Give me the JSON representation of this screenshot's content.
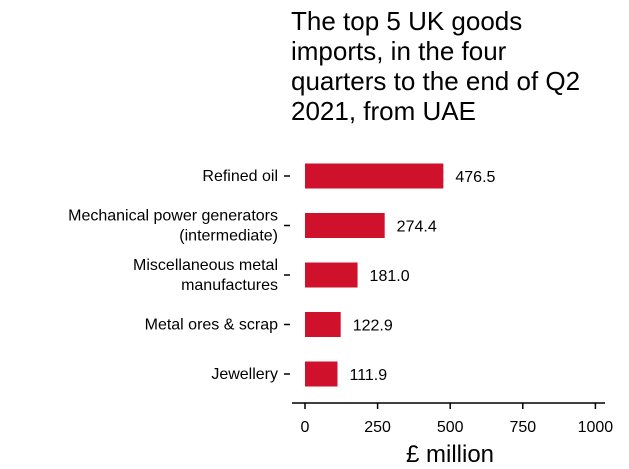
{
  "chart_data": {
    "type": "bar",
    "orientation": "horizontal",
    "title": "The top 5 UK goods\nimports, in the four\nquarters to the end of Q2\n2021, from UAE",
    "categories": [
      "Refined oil",
      "Mechanical power generators\n(intermediate)",
      "Miscellaneous metal\nmanufactures",
      "Metal ores & scrap",
      "Jewellery"
    ],
    "values": [
      476.5,
      274.4,
      181.0,
      122.9,
      111.9
    ],
    "value_labels": [
      "476.5",
      "274.4",
      "181.0",
      "122.9",
      "111.9"
    ],
    "xlabel": "£ million",
    "ylabel": "",
    "xlim": [
      0,
      1000
    ],
    "xticks": [
      "0",
      "250",
      "500",
      "750",
      "1000"
    ],
    "grid": false,
    "bar_color": "#d0112b"
  }
}
